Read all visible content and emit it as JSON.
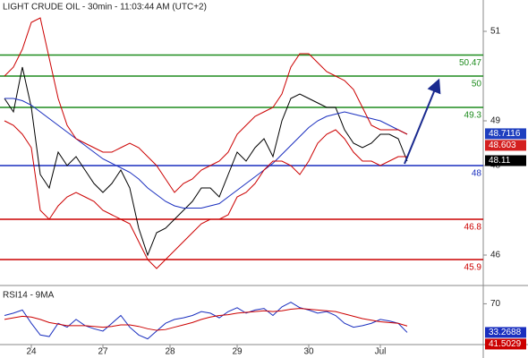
{
  "chart_data": {
    "type": "line",
    "title": "LIGHT CRUDE OIL - 30min - 11:03:44 AM (UTC+2)",
    "x": [
      0,
      1,
      2,
      3,
      4,
      5,
      6,
      7,
      8,
      9,
      10,
      11,
      12,
      13,
      14,
      15,
      16,
      17,
      18,
      19,
      20,
      21,
      22,
      23,
      24,
      25,
      26,
      27,
      28,
      29,
      30,
      31,
      32,
      33,
      34,
      35,
      36,
      37,
      38,
      39,
      40,
      41,
      42,
      43,
      44,
      45
    ],
    "xlim": [
      -0.5,
      53.5
    ],
    "xticks": [
      {
        "value": 3,
        "label": "24"
      },
      {
        "value": 11,
        "label": "27"
      },
      {
        "value": 18.5,
        "label": "28"
      },
      {
        "value": 26,
        "label": "29"
      },
      {
        "value": 34,
        "label": "30"
      },
      {
        "value": 42,
        "label": "Jul"
      }
    ],
    "ylim": [
      45.34,
      51.7
    ],
    "yticks": [
      51,
      49,
      48,
      46
    ],
    "y2lim": [
      20,
      90
    ],
    "y2ticks": [
      70
    ],
    "indicator_label": "RSI14 - 9MA",
    "series": [
      {
        "color": "#000000",
        "values": [
          49.5,
          49.2,
          50.2,
          49.3,
          47.8,
          47.5,
          48.3,
          48.0,
          48.2,
          47.9,
          47.6,
          47.4,
          47.6,
          47.9,
          47.5,
          46.6,
          46.0,
          46.5,
          46.6,
          46.8,
          47.0,
          47.2,
          47.5,
          47.5,
          47.3,
          47.8,
          48.3,
          48.1,
          48.4,
          48.6,
          48.2,
          49.0,
          49.5,
          49.6,
          49.5,
          49.4,
          49.3,
          49.3,
          48.8,
          48.5,
          48.4,
          48.5,
          48.7,
          48.7,
          48.6,
          48.1
        ]
      },
      {
        "color": "#1a2fbf",
        "values": [
          49.5,
          49.5,
          49.45,
          49.35,
          49.2,
          49.05,
          48.9,
          48.75,
          48.6,
          48.45,
          48.3,
          48.15,
          48.05,
          47.95,
          47.85,
          47.7,
          47.5,
          47.35,
          47.2,
          47.1,
          47.05,
          47.05,
          47.05,
          47.1,
          47.15,
          47.3,
          47.45,
          47.6,
          47.75,
          47.9,
          48.05,
          48.25,
          48.45,
          48.65,
          48.85,
          49.0,
          49.1,
          49.15,
          49.2,
          49.15,
          49.1,
          49.05,
          49.0,
          48.9,
          48.8,
          48.7
        ]
      },
      {
        "color": "#cc0000",
        "values": [
          50.0,
          50.2,
          50.6,
          51.2,
          51.3,
          50.4,
          49.5,
          48.9,
          48.6,
          48.5,
          48.4,
          48.3,
          48.3,
          48.4,
          48.5,
          48.4,
          48.2,
          48.0,
          47.7,
          47.4,
          47.6,
          47.7,
          47.9,
          48.0,
          48.1,
          48.3,
          48.7,
          48.9,
          49.1,
          49.2,
          49.3,
          49.6,
          50.2,
          50.5,
          50.5,
          50.3,
          50.1,
          50.0,
          49.9,
          49.7,
          49.3,
          48.9,
          48.8,
          48.8,
          48.8,
          48.7
        ]
      },
      {
        "color": "#cc0000",
        "values": [
          49.0,
          48.9,
          48.7,
          48.4,
          47.0,
          46.8,
          47.1,
          47.3,
          47.4,
          47.3,
          47.2,
          47.0,
          46.9,
          46.8,
          46.7,
          46.3,
          45.9,
          45.7,
          45.9,
          46.1,
          46.3,
          46.5,
          46.7,
          46.8,
          46.8,
          46.9,
          47.3,
          47.4,
          47.6,
          47.9,
          48.1,
          48.1,
          48.0,
          47.8,
          48.1,
          48.5,
          48.7,
          48.8,
          48.6,
          48.3,
          48.1,
          48.1,
          48.0,
          48.1,
          48.2,
          48.2
        ]
      },
      {
        "color": "#1a2fbf",
        "axis": "y2",
        "values": [
          55,
          58,
          62,
          45,
          30,
          28,
          45,
          40,
          50,
          42,
          38,
          35,
          45,
          55,
          40,
          30,
          25,
          35,
          45,
          50,
          52,
          55,
          60,
          58,
          52,
          60,
          65,
          58,
          62,
          64,
          55,
          66,
          72,
          65,
          62,
          58,
          60,
          55,
          45,
          40,
          42,
          45,
          50,
          48,
          45,
          33.2688
        ]
      },
      {
        "color": "#cc0000",
        "axis": "y2",
        "values": [
          50,
          52,
          54,
          53,
          50,
          46,
          44,
          42,
          42,
          42,
          41,
          40,
          41,
          43,
          43,
          41,
          38,
          36,
          37,
          40,
          43,
          46,
          50,
          53,
          55,
          56,
          58,
          59,
          60,
          61,
          60,
          61,
          63,
          64,
          63,
          62,
          61,
          60,
          57,
          54,
          51,
          49,
          47,
          46,
          45,
          41.5029
        ]
      }
    ],
    "levels": [
      {
        "value": 50.47,
        "color": "#1e8c1e"
      },
      {
        "value": 50,
        "color": "#1e8c1e"
      },
      {
        "value": 49.3,
        "color": "#1e8c1e"
      },
      {
        "value": 48,
        "color": "#1a2fbf"
      },
      {
        "value": 46.8,
        "color": "#cc0000"
      },
      {
        "value": 45.9,
        "color": "#cc0000"
      }
    ],
    "price_tags": [
      {
        "value": 48.7116,
        "color": "#1f3fbf"
      },
      {
        "value": 48.603,
        "color": "#d42020"
      },
      {
        "value": 48.11,
        "color": "#000000"
      }
    ]
  }
}
